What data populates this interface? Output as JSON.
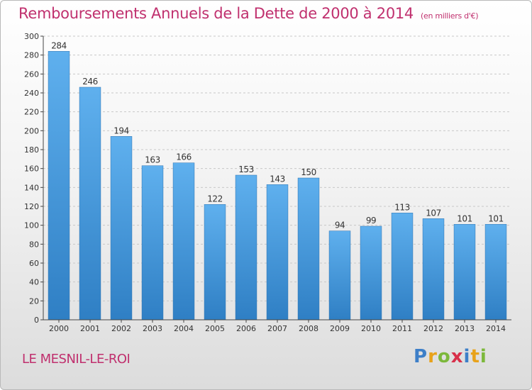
{
  "chart_data": {
    "type": "bar",
    "title": "Remboursements Annuels de la Dette de 2000 à 2014",
    "subtitle": "(en milliers d'€)",
    "categories": [
      "2000",
      "2001",
      "2002",
      "2003",
      "2004",
      "2005",
      "2006",
      "2007",
      "2008",
      "2009",
      "2010",
      "2011",
      "2012",
      "2013",
      "2014"
    ],
    "values": [
      284,
      246,
      194,
      163,
      166,
      122,
      153,
      143,
      150,
      94,
      99,
      113,
      107,
      101,
      101
    ],
    "xlabel": "",
    "ylabel": "",
    "ylim": [
      0,
      300
    ],
    "yticks": [
      0,
      20,
      40,
      60,
      80,
      100,
      120,
      140,
      160,
      180,
      200,
      220,
      240,
      260,
      280,
      300
    ],
    "grid": true,
    "bar_color": "#3a8fd9"
  },
  "footer": {
    "location": "LE MESNIL-LE-ROI",
    "brand": "Proxiti"
  }
}
